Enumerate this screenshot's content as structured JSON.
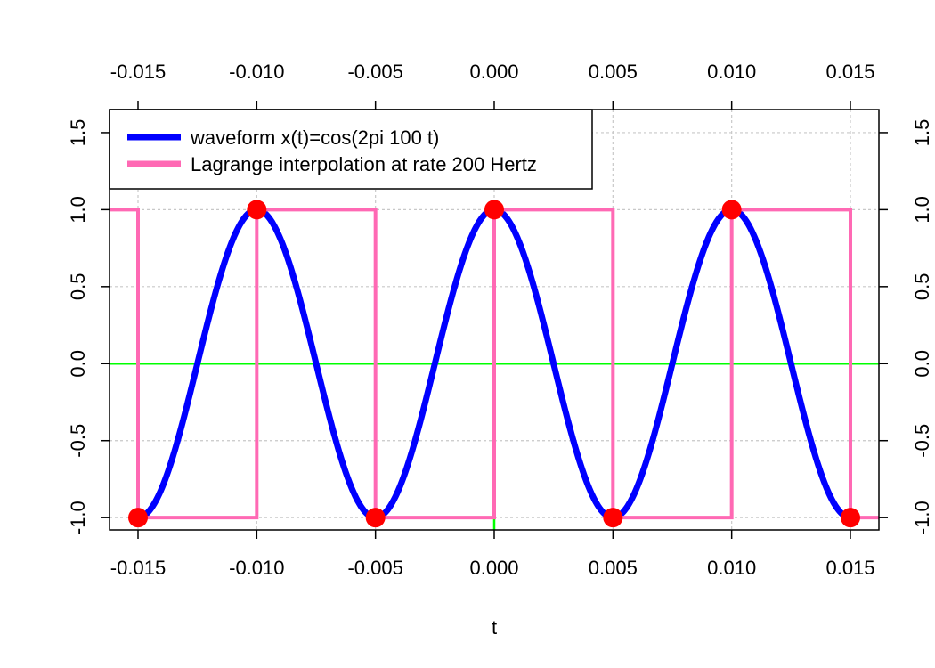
{
  "chart_data": {
    "type": "line",
    "xlabel": "t",
    "ylabel": "",
    "xlim": [
      -0.0162,
      0.0162
    ],
    "ylim": [
      -1.08,
      1.65
    ],
    "x_ticks": [
      "-0.015",
      "-0.010",
      "-0.005",
      "0.000",
      "0.005",
      "0.010",
      "0.015"
    ],
    "x_tick_values": [
      -0.015,
      -0.01,
      -0.005,
      0.0,
      0.005,
      0.01,
      0.015
    ],
    "y_ticks": [
      "-1.0",
      "-0.5",
      "0.0",
      "0.5",
      "1.0",
      "1.5"
    ],
    "y_tick_values": [
      -1.0,
      -0.5,
      0.0,
      0.5,
      1.0,
      1.5
    ],
    "grid": true,
    "legend_position": "top-left",
    "series": [
      {
        "name": "waveform x(t)=cos(2pi 100 t)",
        "kind": "curve",
        "frequency_hz": 100,
        "x_range": [
          -0.015,
          0.015
        ],
        "color": "#0000ff"
      },
      {
        "name": "Lagrange interpolation at rate 200 Hertz",
        "kind": "step",
        "color": "#ff69b4",
        "x": [
          -0.0162,
          -0.015,
          -0.015,
          -0.01,
          -0.01,
          -0.005,
          -0.005,
          0.0,
          0.0,
          0.005,
          0.005,
          0.01,
          0.01,
          0.015,
          0.015,
          0.0162
        ],
        "y": [
          1,
          1,
          -1,
          -1,
          1,
          1,
          -1,
          -1,
          1,
          1,
          -1,
          -1,
          1,
          1,
          -1,
          -1
        ]
      }
    ],
    "samples": {
      "color": "#ff0000",
      "x": [
        -0.015,
        -0.01,
        -0.005,
        0.0,
        0.005,
        0.01,
        0.015
      ],
      "y": [
        -1,
        1,
        -1,
        1,
        -1,
        1,
        -1
      ]
    },
    "reference_lines": {
      "color": "#00ff00",
      "horizontal_y": 0.0,
      "vertical_x": 0.0,
      "vertical_y_range": [
        -1.08,
        1.0
      ]
    }
  }
}
